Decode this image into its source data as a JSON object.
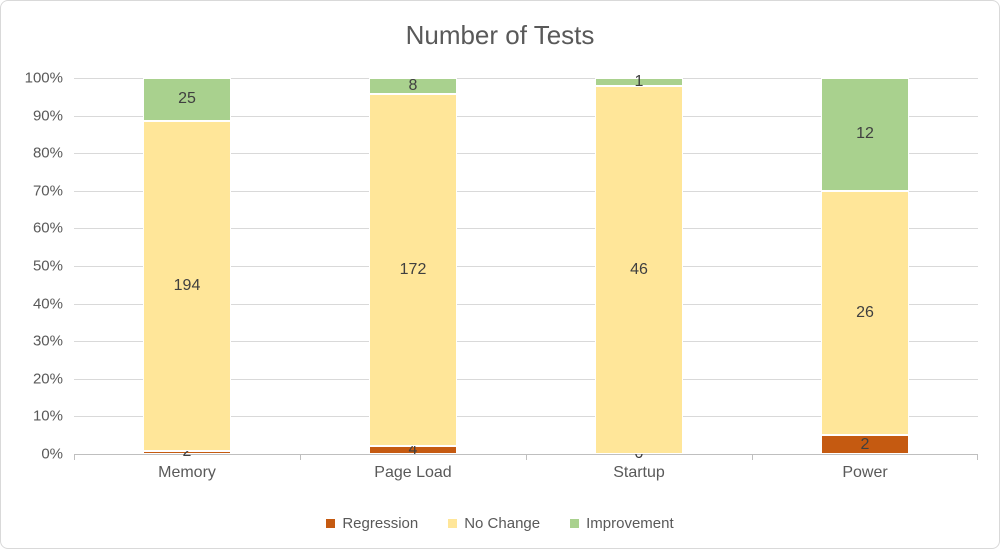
{
  "chart_data": {
    "type": "bar",
    "variant": "stacked-100-percent",
    "title": "Number of Tests",
    "categories": [
      "Memory",
      "Page Load",
      "Startup",
      "Power"
    ],
    "series": [
      {
        "name": "Regression",
        "color": "#C55A11",
        "values": [
          2,
          4,
          0,
          2
        ]
      },
      {
        "name": "No Change",
        "color": "#FFE699",
        "values": [
          194,
          172,
          46,
          26
        ]
      },
      {
        "name": "Improvement",
        "color": "#A9D18E",
        "values": [
          25,
          8,
          1,
          12
        ]
      }
    ],
    "y_ticks": [
      "0%",
      "10%",
      "20%",
      "30%",
      "40%",
      "50%",
      "60%",
      "70%",
      "80%",
      "90%",
      "100%"
    ],
    "ylim": [
      0,
      100
    ],
    "grid": true,
    "legend_position": "bottom",
    "xlabel": "",
    "ylabel": ""
  },
  "colors": {
    "title_text": "#595959",
    "axis_text": "#595959",
    "data_label_text": "#404040",
    "gridline": "#D9D9D9",
    "axis_line": "#BFBFBF",
    "frame_border": "#D9D9D9",
    "background": "#FFFFFF"
  }
}
